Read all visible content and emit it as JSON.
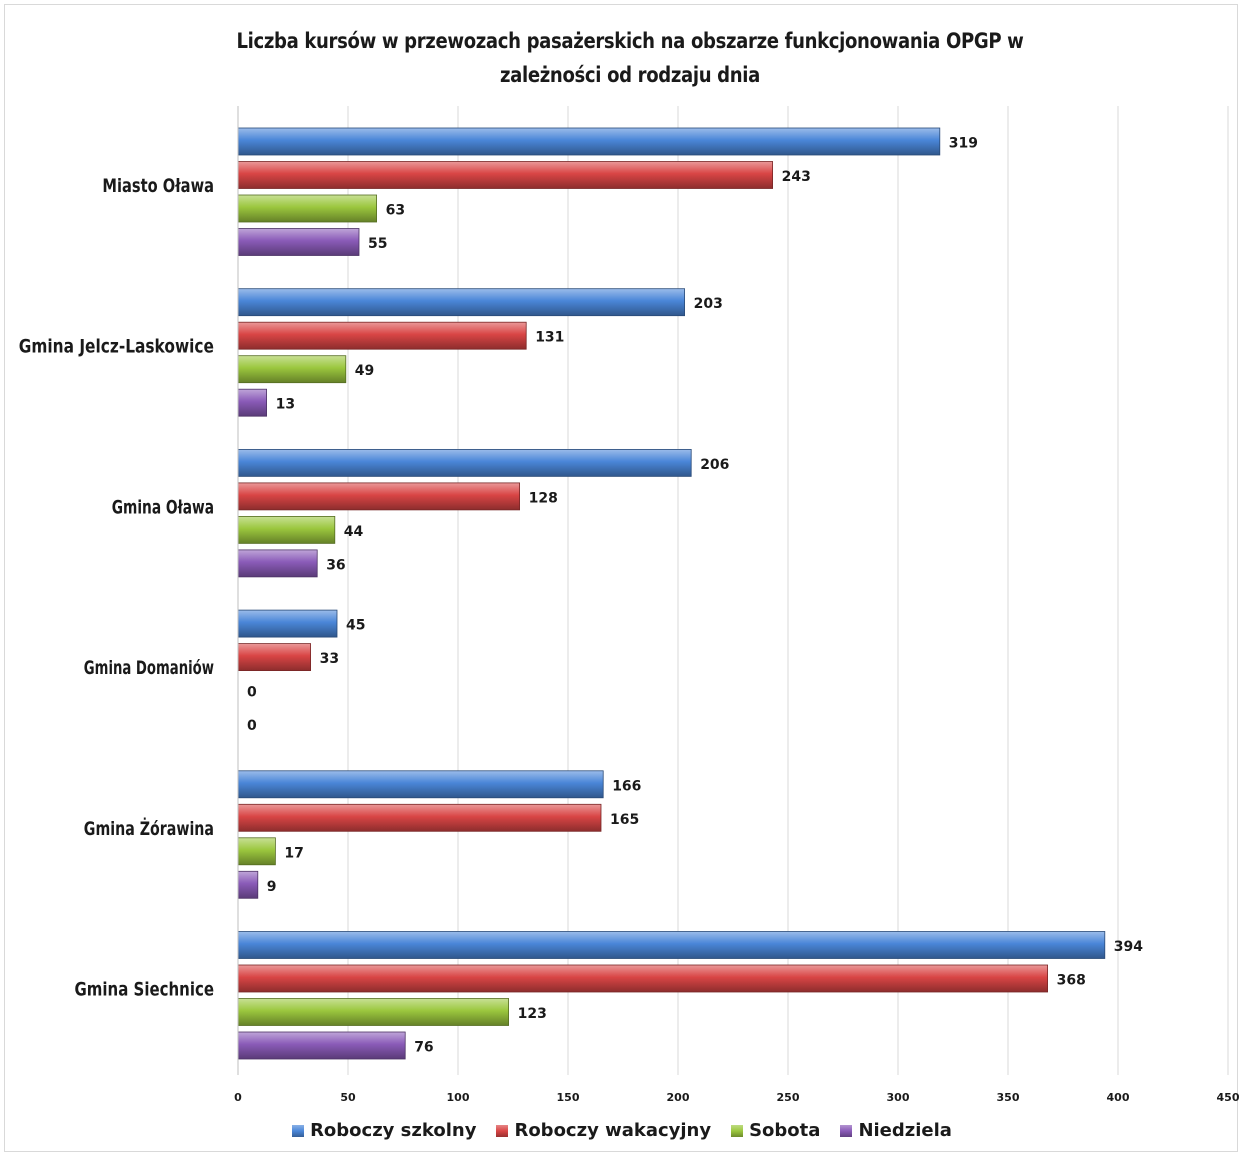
{
  "chart_data": {
    "type": "bar",
    "orientation": "horizontal",
    "title": "Liczba kursów w przewozach pasażerskich na obszarze funkcjonowania OPGP w zależności od rodzaju dnia",
    "categories": [
      "Miasto Oława",
      "Gmina Jelcz-Laskowice",
      "Gmina Oława",
      "Gmina Domaniów",
      "Gmina Żórawina",
      "Gmina Siechnice"
    ],
    "series": [
      {
        "name": "Roboczy szkolny",
        "color": "#4a86d8",
        "values": [
          319,
          203,
          206,
          45,
          166,
          394
        ]
      },
      {
        "name": "Roboczy wakacyjny",
        "color": "#d94545",
        "values": [
          243,
          131,
          128,
          33,
          165,
          368
        ]
      },
      {
        "name": "Sobota",
        "color": "#9bc73e",
        "values": [
          63,
          49,
          44,
          0,
          17,
          123
        ]
      },
      {
        "name": "Niedziela",
        "color": "#8a5bb8",
        "values": [
          55,
          13,
          36,
          0,
          9,
          76
        ]
      }
    ],
    "xlim": [
      0,
      450
    ],
    "xticks": [
      0,
      50,
      100,
      150,
      200,
      250,
      300,
      350,
      400,
      450
    ],
    "grid": "vertical",
    "legend": "bottom",
    "data_labels": true
  }
}
